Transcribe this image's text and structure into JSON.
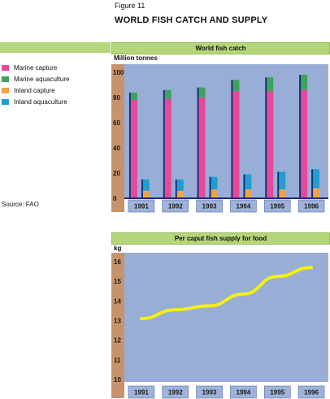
{
  "figure_label": "Figure 11",
  "figure_title": "WORLD FISH CATCH AND SUPPLY",
  "source": "Source: FAO",
  "legend": [
    {
      "label": "Marine capture",
      "color": "#e8489a"
    },
    {
      "label": "Marine aquaculture",
      "color": "#3ea35a"
    },
    {
      "label": "Inland capture",
      "color": "#f4a340"
    },
    {
      "label": "Inland aquaculture",
      "color": "#1f9fcf"
    }
  ],
  "colors": {
    "plot_bg": "#98aed6",
    "header_bg": "#b5d67a",
    "category_box": "#9fb3da",
    "axis_label_bg": "#c7936c",
    "axis_line": "#1a2c7a",
    "bar_edge": "#1a2c7a",
    "line": "#f5ef12"
  },
  "chart_data": [
    {
      "type": "bar",
      "title": "World fish catch",
      "ylabel": "Million tonnes",
      "categories": [
        "1991",
        "1992",
        "1993",
        "1994",
        "1995",
        "1996"
      ],
      "ylim": [
        0,
        100
      ],
      "yticks": [
        0,
        20,
        40,
        60,
        80,
        100
      ],
      "stack_groups": [
        {
          "name": "marine",
          "series": [
            {
              "name": "Marine capture",
              "values": [
                78,
                79,
                80,
                85,
                85,
                86
              ]
            },
            {
              "name": "Marine aquaculture",
              "values": [
                6,
                7,
                8,
                9,
                11,
                12
              ]
            }
          ]
        },
        {
          "name": "inland",
          "series": [
            {
              "name": "Inland capture",
              "values": [
                6,
                6,
                7,
                7,
                7,
                8
              ]
            },
            {
              "name": "Inland aquaculture",
              "values": [
                9,
                9,
                10,
                12,
                14,
                15
              ]
            }
          ]
        }
      ],
      "grid": false
    },
    {
      "type": "line",
      "title": "Per caput fish supply for food",
      "ylabel": "kg",
      "categories": [
        "1991",
        "1992",
        "1993",
        "1994",
        "1995",
        "1996"
      ],
      "series": [
        {
          "values": [
            13.1,
            13.55,
            13.75,
            14.35,
            15.25,
            15.7
          ]
        }
      ],
      "ylim": [
        10,
        16
      ],
      "yticks": [
        10,
        11,
        12,
        13,
        14,
        15,
        16
      ],
      "grid": false
    }
  ]
}
